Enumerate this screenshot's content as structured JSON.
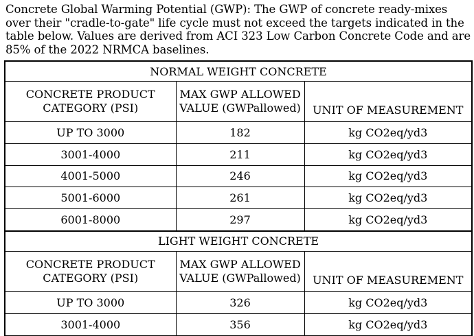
{
  "intro": "Concrete Global Warming Potential (GWP): The GWP of concrete ready-mixes over their \"cradle-to-gate\" life cycle must not exceed the targets indicated in the table below. Values are derived from ACI 323 Low Carbon Concrete Code and are 85% of the 2022 NRMCA baselines.",
  "table": {
    "headers": {
      "category_line1": "CONCRETE PRODUCT",
      "category_line2": "CATEGORY (PSI)",
      "gwp_line1": "MAX GWP ALLOWED",
      "gwp_line2": "VALUE (GWPallowed)",
      "unit": "UNIT OF MEASUREMENT"
    },
    "normal": {
      "title": "NORMAL WEIGHT CONCRETE",
      "rows": [
        {
          "category": "UP TO 3000",
          "gwp": "182",
          "unit": "kg CO2eq/yd3"
        },
        {
          "category": "3001-4000",
          "gwp": "211",
          "unit": "kg CO2eq/yd3"
        },
        {
          "category": "4001-5000",
          "gwp": "246",
          "unit": "kg CO2eq/yd3"
        },
        {
          "category": "5001-6000",
          "gwp": "261",
          "unit": "kg CO2eq/yd3"
        },
        {
          "category": "6001-8000",
          "gwp": "297",
          "unit": "kg CO2eq/yd3"
        }
      ]
    },
    "light": {
      "title": "LIGHT WEIGHT CONCRETE",
      "rows": [
        {
          "category": "UP TO 3000",
          "gwp": "326",
          "unit": "kg CO2eq/yd3"
        },
        {
          "category": "3001-4000",
          "gwp": "356",
          "unit": "kg CO2eq/yd3"
        }
      ]
    }
  }
}
